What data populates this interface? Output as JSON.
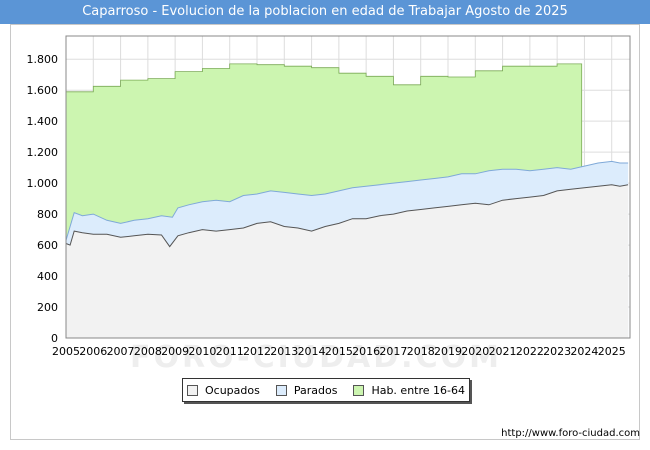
{
  "header": {
    "title": "Caparroso - Evolucion de la poblacion en edad de Trabajar Agosto de 2025"
  },
  "watermark": "FORO-CIUDAD.COM",
  "footer": {
    "url": "http://www.foro-ciudad.com"
  },
  "colors": {
    "title_bg": "#5b95d6",
    "ocupados_fill": "#f2f2f2",
    "parados_fill": "#dcecfc",
    "hab_fill": "#ccf5b0",
    "line": "#555555",
    "grid": "#dddddd"
  },
  "chart_data": {
    "type": "area",
    "title": "Caparroso - Evolucion de la poblacion en edad de Trabajar Agosto de 2025",
    "xlabel": "",
    "ylabel": "",
    "xlim": [
      2005,
      2025.67
    ],
    "ylim": [
      0,
      1950
    ],
    "y_ticks": [
      0,
      200,
      400,
      600,
      800,
      1000,
      1200,
      1400,
      1600,
      1800
    ],
    "y_tick_labels": [
      "0",
      "200",
      "400",
      "600",
      "800",
      "1.000",
      "1.200",
      "1.400",
      "1.600",
      "1.800"
    ],
    "x_tick_labels": [
      "2005",
      "2006",
      "2007",
      "2008",
      "2009",
      "2010",
      "2011",
      "2012",
      "2013",
      "2014",
      "2015",
      "2016",
      "2017",
      "2018",
      "2019",
      "2020",
      "2021",
      "2022",
      "2023",
      "2024",
      "2025"
    ],
    "legend": [
      "Ocupados",
      "Parados",
      "Hab. entre 16-64"
    ],
    "legend_position": "bottom",
    "series": [
      {
        "name": "Hab. entre 16-64",
        "x": [
          2005,
          2006,
          2007,
          2008,
          2009,
          2010,
          2011,
          2012,
          2013,
          2014,
          2015,
          2016,
          2017,
          2018,
          2019,
          2020,
          2021,
          2022,
          2023,
          2023.9
        ],
        "values": [
          1590,
          1625,
          1665,
          1675,
          1720,
          1740,
          1770,
          1765,
          1755,
          1745,
          1710,
          1690,
          1635,
          1690,
          1685,
          1725,
          1755,
          1755,
          1770,
          1770
        ]
      },
      {
        "name": "Parados",
        "x": [
          2005,
          2005.3,
          2005.6,
          2006,
          2006.5,
          2007,
          2007.5,
          2008,
          2008.5,
          2008.9,
          2009.1,
          2009.5,
          2010,
          2010.5,
          2011,
          2011.5,
          2012,
          2012.5,
          2013,
          2013.5,
          2014,
          2014.5,
          2015,
          2015.5,
          2016,
          2016.5,
          2017,
          2017.5,
          2018,
          2018.5,
          2019,
          2019.5,
          2020,
          2020.5,
          2021,
          2021.5,
          2022,
          2022.5,
          2023,
          2023.5,
          2024,
          2024.5,
          2025,
          2025.3,
          2025.6
        ],
        "values": [
          630,
          810,
          790,
          800,
          760,
          740,
          760,
          770,
          790,
          780,
          840,
          860,
          880,
          890,
          880,
          920,
          930,
          950,
          940,
          930,
          920,
          930,
          950,
          970,
          980,
          990,
          1000,
          1010,
          1020,
          1030,
          1040,
          1060,
          1060,
          1080,
          1090,
          1090,
          1080,
          1090,
          1100,
          1090,
          1110,
          1130,
          1140,
          1130,
          1130
        ]
      },
      {
        "name": "Ocupados",
        "x": [
          2005,
          2005.15,
          2005.3,
          2005.6,
          2006,
          2006.5,
          2007,
          2007.5,
          2008,
          2008.5,
          2008.8,
          2009.1,
          2009.5,
          2010,
          2010.5,
          2011,
          2011.5,
          2012,
          2012.5,
          2013,
          2013.5,
          2014,
          2014.5,
          2015,
          2015.5,
          2016,
          2016.5,
          2017,
          2017.5,
          2018,
          2018.5,
          2019,
          2019.5,
          2020,
          2020.5,
          2021,
          2021.5,
          2022,
          2022.5,
          2023,
          2023.5,
          2024,
          2024.5,
          2025,
          2025.3,
          2025.6
        ],
        "values": [
          610,
          600,
          690,
          680,
          670,
          670,
          650,
          660,
          670,
          665,
          590,
          660,
          680,
          700,
          690,
          700,
          710,
          740,
          750,
          720,
          710,
          690,
          720,
          740,
          770,
          770,
          790,
          800,
          820,
          830,
          840,
          850,
          860,
          870,
          860,
          890,
          900,
          910,
          920,
          950,
          960,
          970,
          980,
          990,
          980,
          990
        ]
      }
    ]
  }
}
